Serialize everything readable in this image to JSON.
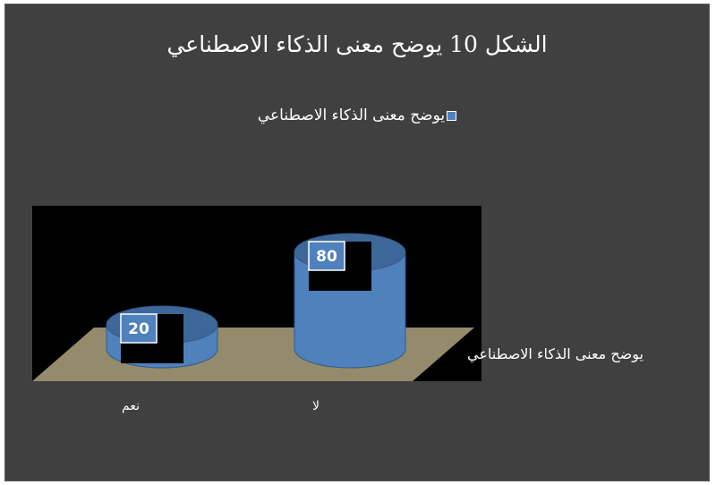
{
  "chart_data": {
    "type": "bar",
    "style": "3d-cylinder",
    "title": "الشكل 10 يوضح معنى الذكاء الاصطناعي",
    "categories": [
      "نعم",
      "لا"
    ],
    "series": [
      {
        "name": "يوضح معنى الذكاء الاصطناعي",
        "values": [
          20,
          80
        ]
      }
    ],
    "legend_position": "top",
    "series_axis_label": "يوضح معنى الذكاء الاصطناعي",
    "ylim": [
      0,
      100
    ],
    "grid": false,
    "colors": {
      "bar": "#4f81bd",
      "bar_top": "#3d6799",
      "bar_dark": "#35598a",
      "floor": "#938b6c",
      "plot_bg": "#000000",
      "chart_bg": "#404040",
      "label_bg": "#4f81bd",
      "text": "#ffffff"
    }
  }
}
